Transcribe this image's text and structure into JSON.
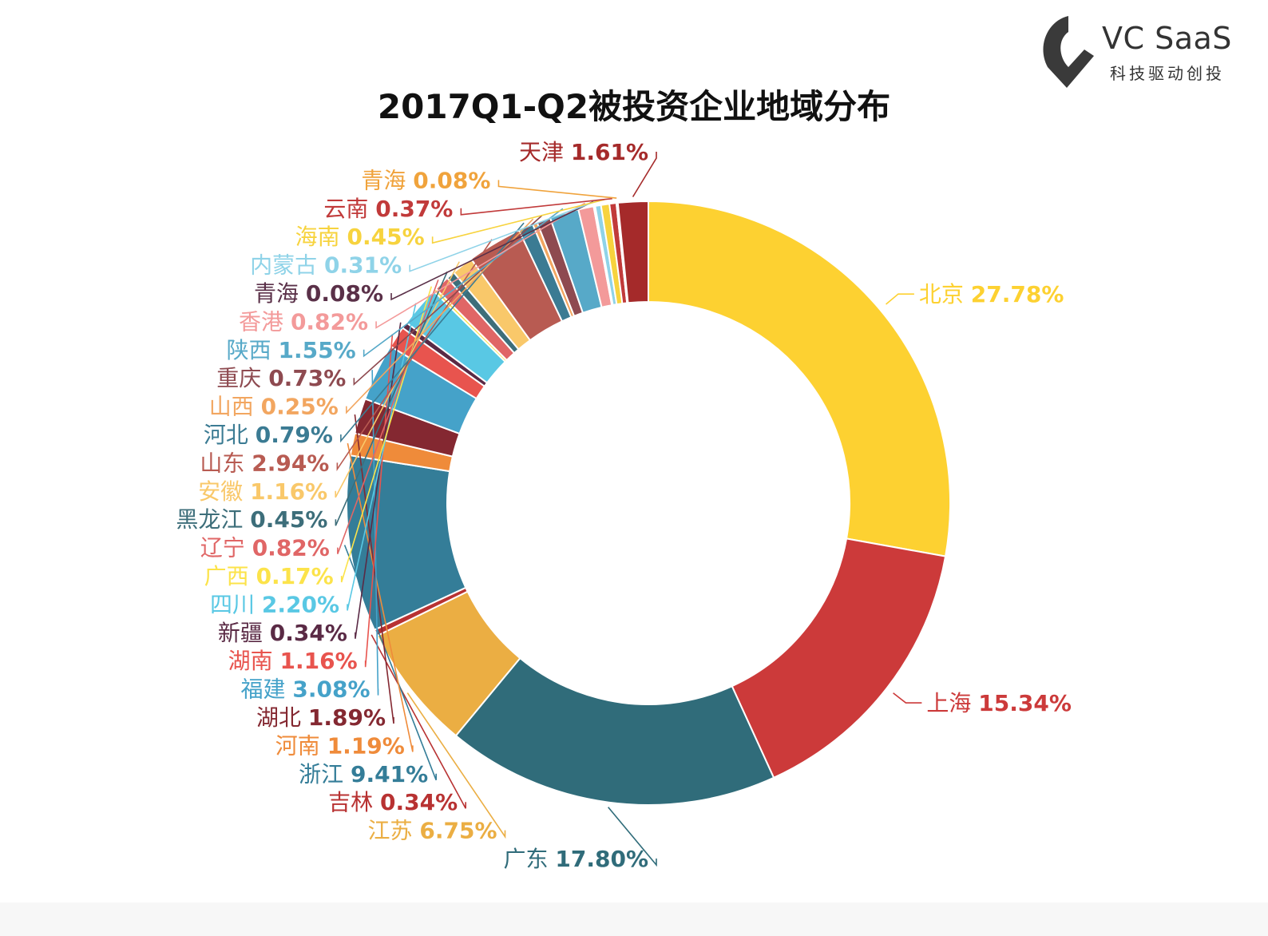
{
  "logo": {
    "name": "VC SaaS",
    "tagline": "科技驱动创投"
  },
  "chart_data": {
    "type": "pie",
    "title": "2017Q1-Q2被投资企业地域分布",
    "donut": true,
    "start": "top, clockwise",
    "slices": [
      {
        "label": "北京",
        "value": 27.78,
        "text": "27.78%",
        "color": "#fdd131"
      },
      {
        "label": "上海",
        "value": 15.34,
        "text": "15.34%",
        "color": "#cc3a3a"
      },
      {
        "label": "广东",
        "value": 17.8,
        "text": "17.80%",
        "color": "#306c7a"
      },
      {
        "label": "江苏",
        "value": 6.75,
        "text": "6.75%",
        "color": "#ebae43"
      },
      {
        "label": "吉林",
        "value": 0.34,
        "text": "0.34%",
        "color": "#b83232"
      },
      {
        "label": "浙江",
        "value": 9.41,
        "text": "9.41%",
        "color": "#347d98"
      },
      {
        "label": "河南",
        "value": 1.19,
        "text": "1.19%",
        "color": "#ef8b3a"
      },
      {
        "label": "湖北",
        "value": 1.89,
        "text": "1.89%",
        "color": "#842831"
      },
      {
        "label": "福建",
        "value": 3.08,
        "text": "3.08%",
        "color": "#45a2c9"
      },
      {
        "label": "湖南",
        "value": 1.16,
        "text": "1.16%",
        "color": "#e8544e"
      },
      {
        "label": "新疆",
        "value": 0.34,
        "text": "0.34%",
        "color": "#5a2a45"
      },
      {
        "label": "四川",
        "value": 2.2,
        "text": "2.20%",
        "color": "#59c8e4"
      },
      {
        "label": "广西",
        "value": 0.17,
        "text": "0.17%",
        "color": "#fce34a"
      },
      {
        "label": "辽宁",
        "value": 0.82,
        "text": "0.82%",
        "color": "#e06666"
      },
      {
        "label": "黑龙江",
        "value": 0.45,
        "text": "0.45%",
        "color": "#3d6e7a"
      },
      {
        "label": "安徽",
        "value": 1.16,
        "text": "1.16%",
        "color": "#f9c86a"
      },
      {
        "label": "山东",
        "value": 2.94,
        "text": "2.94%",
        "color": "#b85b52"
      },
      {
        "label": "河北",
        "value": 0.79,
        "text": "0.79%",
        "color": "#3b7b93"
      },
      {
        "label": "山西",
        "value": 0.25,
        "text": "0.25%",
        "color": "#f2a660"
      },
      {
        "label": "重庆",
        "value": 0.73,
        "text": "0.73%",
        "color": "#8e4a50"
      },
      {
        "label": "陕西",
        "value": 1.55,
        "text": "1.55%",
        "color": "#57a9c8"
      },
      {
        "label": "香港",
        "value": 0.82,
        "text": "0.82%",
        "color": "#f39a9a"
      },
      {
        "label": "青海",
        "value": 0.08,
        "text": "0.08%",
        "color": "#5a3048"
      },
      {
        "label": "内蒙古",
        "value": 0.31,
        "text": "0.31%",
        "color": "#8fd3e8"
      },
      {
        "label": "海南",
        "value": 0.45,
        "text": "0.45%",
        "color": "#f7d33e"
      },
      {
        "label": "云南",
        "value": 0.37,
        "text": "0.37%",
        "color": "#c13a3a"
      },
      {
        "label": "青海",
        "value": 0.08,
        "text": "0.08%",
        "color": "#f0a33c"
      },
      {
        "label": "天津",
        "value": 1.61,
        "text": "1.61%",
        "color": "#a52a2a"
      }
    ]
  }
}
